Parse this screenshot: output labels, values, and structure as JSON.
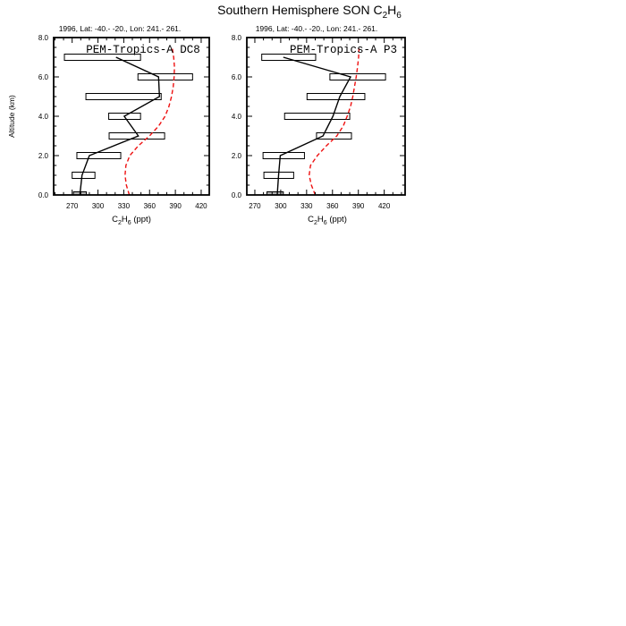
{
  "figure": {
    "title": {
      "pre": "Southern Hemisphere SON C",
      "sub1": "2",
      "mid": "H",
      "sub2": "6"
    },
    "background": "#ffffff",
    "frame_color": "#000000",
    "profile_color": "#000000",
    "model_color": "#ee1111",
    "zero_box_fill": "#b3b3b3"
  },
  "chart_data": [
    {
      "type": "line",
      "title": "PEM-Tropics-A DC8",
      "subtitle": "1996, Lat: -40.- -20., Lon: 241.- 261.",
      "ylabel": "Altitude (km)",
      "xlabel_parts": {
        "pre": "C",
        "sub1": "2",
        "mid": "H",
        "sub2": "6",
        "post": " (ppt)"
      },
      "xlim": [
        248.5,
        429.4
      ],
      "ylim": [
        0,
        8
      ],
      "x_major_ticks": [
        270,
        300,
        330,
        360,
        390,
        420
      ],
      "x_minor_step": 10,
      "y_major_ticks": [
        "0.0",
        "2.0",
        "4.0",
        "6.0",
        "8.0"
      ],
      "y_major_values": [
        0,
        2,
        4,
        6,
        8
      ],
      "y_minor_step": 0.5,
      "grid": false,
      "series": [
        {
          "name": "observed-mean-profile",
          "style": "solid",
          "points": [
            [
              279,
              0
            ],
            [
              281.5,
              1
            ],
            [
              290,
              2
            ],
            [
              347,
              3
            ],
            [
              330.5,
              4
            ],
            [
              371.5,
              5
            ],
            [
              370.5,
              6
            ],
            [
              321,
              7
            ]
          ]
        },
        {
          "name": "model-profile",
          "style": "dashed",
          "points": [
            [
              336.5,
              0
            ],
            [
              333,
              0.5
            ],
            [
              331.5,
              1
            ],
            [
              332.5,
              1.5
            ],
            [
              337,
              2
            ],
            [
              347,
              2.5
            ],
            [
              360,
              3
            ],
            [
              370.5,
              3.5
            ],
            [
              378,
              4
            ],
            [
              382.5,
              4.5
            ],
            [
              385.5,
              5
            ],
            [
              387.5,
              5.5
            ],
            [
              388.5,
              6
            ],
            [
              389,
              6.5
            ],
            [
              388,
              7
            ],
            [
              386.5,
              7.45
            ]
          ]
        }
      ],
      "range_boxes": [
        {
          "alt": 0,
          "min": 271.5,
          "max": 286.5,
          "filled": true
        },
        {
          "alt": 1,
          "min": 270,
          "max": 296.5,
          "filled": false
        },
        {
          "alt": 2,
          "min": 275.5,
          "max": 326.5,
          "filled": false
        },
        {
          "alt": 3,
          "min": 313,
          "max": 377.5,
          "filled": false
        },
        {
          "alt": 4,
          "min": 312.5,
          "max": 349.5,
          "filled": false
        },
        {
          "alt": 5,
          "min": 286,
          "max": 373.5,
          "filled": false
        },
        {
          "alt": 6,
          "min": 346.5,
          "max": 410,
          "filled": false
        },
        {
          "alt": 7,
          "min": 261,
          "max": 349.5,
          "filled": false
        }
      ]
    },
    {
      "type": "line",
      "title": "PEM-Tropics-A P3",
      "subtitle": "1996, Lat: -40.- -20., Lon: 241.- 261.",
      "ylabel": "Altitude (km)",
      "xlabel_parts": {
        "pre": "C",
        "sub1": "2",
        "mid": "H",
        "sub2": "6",
        "post": " (ppt)"
      },
      "xlim": [
        260.7,
        444.2
      ],
      "ylim": [
        0,
        8
      ],
      "x_major_ticks": [
        270,
        300,
        330,
        360,
        390,
        420
      ],
      "x_minor_step": 10,
      "y_major_ticks": [
        "0.0",
        "2.0",
        "4.0",
        "6.0",
        "8.0"
      ],
      "y_major_values": [
        0,
        2,
        4,
        6,
        8
      ],
      "y_minor_step": 0.5,
      "grid": false,
      "series": [
        {
          "name": "observed-mean-profile",
          "style": "solid",
          "points": [
            [
              296,
              0
            ],
            [
              297.5,
              1
            ],
            [
              299.5,
              2
            ],
            [
              349,
              3
            ],
            [
              360.5,
              4
            ],
            [
              368.5,
              5
            ],
            [
              381,
              6
            ],
            [
              303,
              7
            ]
          ]
        },
        {
          "name": "model-profile",
          "style": "dashed",
          "points": [
            [
              340,
              0
            ],
            [
              335.5,
              0.5
            ],
            [
              333,
              1
            ],
            [
              334.5,
              1.5
            ],
            [
              342.5,
              2
            ],
            [
              353,
              2.5
            ],
            [
              365,
              3
            ],
            [
              372.5,
              3.5
            ],
            [
              377,
              4
            ],
            [
              381,
              4.5
            ],
            [
              383.5,
              5
            ],
            [
              385.5,
              5.5
            ],
            [
              387.5,
              6
            ],
            [
              389,
              6.5
            ],
            [
              390.3,
              7
            ],
            [
              390.7,
              7.45
            ]
          ]
        }
      ],
      "range_boxes": [
        {
          "alt": 0,
          "min": 284,
          "max": 303,
          "filled": true
        },
        {
          "alt": 1,
          "min": 280.5,
          "max": 315,
          "filled": false
        },
        {
          "alt": 2,
          "min": 279.5,
          "max": 327.5,
          "filled": false
        },
        {
          "alt": 3,
          "min": 341.5,
          "max": 382,
          "filled": false
        },
        {
          "alt": 4,
          "min": 304.5,
          "max": 380,
          "filled": false
        },
        {
          "alt": 5,
          "min": 330.5,
          "max": 397.5,
          "filled": false
        },
        {
          "alt": 6,
          "min": 357,
          "max": 421.5,
          "filled": false
        },
        {
          "alt": 7,
          "min": 278,
          "max": 340.5,
          "filled": false
        }
      ]
    }
  ]
}
